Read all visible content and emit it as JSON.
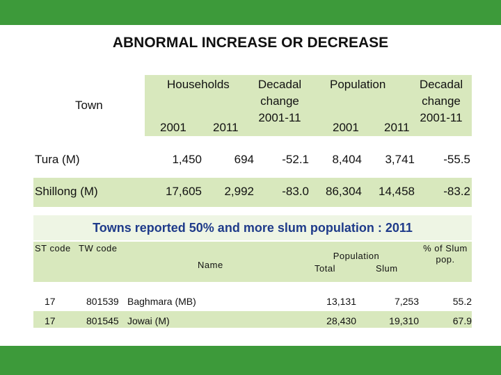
{
  "title": "ABNORMAL INCREASE OR DECREASE",
  "table1": {
    "headers": {
      "town": "Town",
      "households": "Households",
      "hh_decadal": [
        "Decadal",
        "change",
        "2001-11"
      ],
      "population": "Population",
      "pop_decadal": [
        "Decadal",
        "change",
        "2001-11"
      ],
      "year_2001": "2001",
      "year_2011": "2011"
    },
    "rows": [
      {
        "town": "Tura (M)",
        "hh_2001": "1,450",
        "hh_2011": "694",
        "hh_change": "-52.1",
        "pop_2001": "8,404",
        "pop_2011": "3,741",
        "pop_change": "-55.5"
      },
      {
        "town": "Shillong (M)",
        "hh_2001": "17,605",
        "hh_2011": "2,992",
        "hh_change": "-83.0",
        "pop_2001": "86,304",
        "pop_2011": "14,458",
        "pop_change": "-83.2"
      }
    ]
  },
  "subtitle": "Towns reported 50% and more slum population : 2011",
  "table2": {
    "headers": {
      "st_code": "ST code",
      "tw_code": "TW code",
      "name": "Name",
      "population": "Population",
      "total": "Total",
      "slum": "Slum",
      "pct_slum": [
        "% of Slum",
        "pop."
      ]
    },
    "rows": [
      {
        "st_code": "17",
        "tw_code": "801539",
        "name": "Baghmara (MB)",
        "total": "13,131",
        "slum": "7,253",
        "pct": "55.2"
      },
      {
        "st_code": "17",
        "tw_code": "801545",
        "name": "Jowai (M)",
        "total": "28,430",
        "slum": "19,310",
        "pct": "67.9"
      }
    ]
  },
  "colors": {
    "band": "#3d9a3a",
    "shade": "#d8e8bd",
    "subtitle": "#1f3b8a"
  }
}
